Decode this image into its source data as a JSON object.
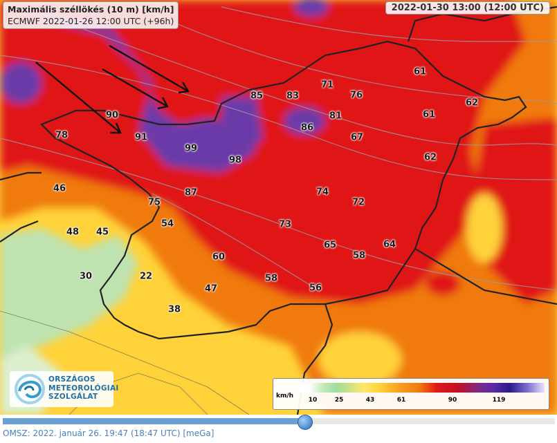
{
  "header": {
    "title": "Maximális széllökés (10 m) [km/h]",
    "model_run": "ECMWF 2022-01-26 12:00 UTC (+96h)",
    "valid_time": "2022-01-30 13:00 (12:00 UTC)"
  },
  "values": [
    "61",
    "62",
    "61",
    "62",
    "81",
    "86",
    "67",
    "76",
    "71",
    "83",
    "85",
    "90",
    "91",
    "78",
    "99",
    "98",
    "87",
    "74",
    "72",
    "73",
    "75",
    "54",
    "46",
    "48",
    "45",
    "30",
    "22",
    "38",
    "47",
    "60",
    "58",
    "65",
    "58",
    "64",
    "56"
  ],
  "legend": {
    "unit": "km/h",
    "ticks": [
      "10",
      "25",
      "43",
      "61",
      "90",
      "119"
    ]
  },
  "logo": {
    "lines": [
      "ORSZÁGOS",
      "METEOROLÓGIAI",
      "SZOLGÁLAT"
    ]
  },
  "footer": {
    "text": "OMSZ: 2022. január 26. 19:47 (18:47  UTC)  [meGa]"
  },
  "slider": {
    "progress": 0.55
  },
  "colors": {
    "red": "#e01818",
    "purple": "#6a3aa8",
    "orange": "#f07a10",
    "yellow": "#ffd23a",
    "green": "#bfe3b0"
  }
}
